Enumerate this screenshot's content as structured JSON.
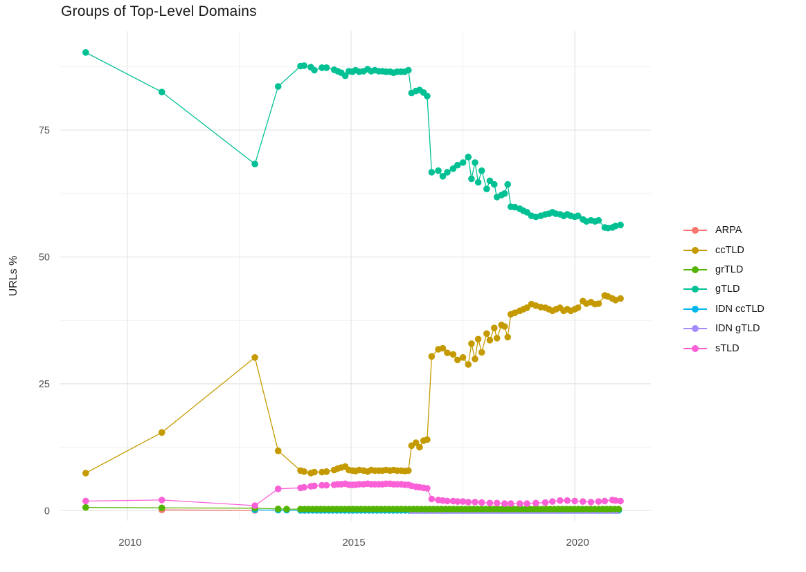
{
  "chart_data": {
    "type": "scatter",
    "title": "Groups of Top-Level Domains",
    "xlabel": "",
    "ylabel": "URLs %",
    "x_ticks": [
      {
        "value": 2010,
        "label": "2010"
      },
      {
        "value": 2015,
        "label": "2015"
      },
      {
        "value": 2020,
        "label": "2020"
      }
    ],
    "y_ticks": [
      {
        "value": 0,
        "label": "0"
      },
      {
        "value": 25,
        "label": "25"
      },
      {
        "value": 50,
        "label": "50"
      },
      {
        "value": 75,
        "label": "75"
      }
    ],
    "x_minor_gridlines": [
      2012.5,
      2017.5
    ],
    "y_minor_gridlines": [
      12.5,
      37.5,
      62.5,
      87.5
    ],
    "xlim": [
      2008.5,
      2021.7
    ],
    "ylim": [
      -2,
      94.5
    ],
    "grid": "on",
    "legend_position": "right",
    "legend_order": [
      "ARPA",
      "ccTLD",
      "grTLD",
      "gTLD",
      "IDN ccTLD",
      "IDN gTLD",
      "sTLD"
    ],
    "draw_order": [
      "ARPA",
      "IDN ccTLD",
      "IDN gTLD",
      "grTLD",
      "ccTLD",
      "gTLD",
      "sTLD"
    ],
    "series": [
      {
        "name": "ARPA",
        "color": "#F8766D",
        "points": [
          [
            2010.77,
            0.15
          ],
          [
            2012.85,
            0.05
          ]
        ]
      },
      {
        "name": "ccTLD",
        "color": "#C49A00",
        "points": [
          [
            2009.07,
            7.4
          ],
          [
            2010.77,
            15.4
          ],
          [
            2012.85,
            30.2
          ],
          [
            2013.37,
            11.8
          ],
          [
            2013.87,
            7.9
          ],
          [
            2013.95,
            7.7
          ],
          [
            2014.1,
            7.4
          ],
          [
            2014.18,
            7.6
          ],
          [
            2014.35,
            7.6
          ],
          [
            2014.45,
            7.7
          ],
          [
            2014.62,
            8.0
          ],
          [
            2014.7,
            8.3
          ],
          [
            2014.78,
            8.5
          ],
          [
            2014.87,
            8.7
          ],
          [
            2014.95,
            8.0
          ],
          [
            2015.03,
            7.9
          ],
          [
            2015.1,
            7.8
          ],
          [
            2015.18,
            8.0
          ],
          [
            2015.28,
            7.9
          ],
          [
            2015.37,
            7.7
          ],
          [
            2015.45,
            8.0
          ],
          [
            2015.53,
            7.9
          ],
          [
            2015.62,
            7.9
          ],
          [
            2015.7,
            7.9
          ],
          [
            2015.78,
            8.0
          ],
          [
            2015.87,
            7.9
          ],
          [
            2015.95,
            8.0
          ],
          [
            2016.03,
            7.9
          ],
          [
            2016.12,
            7.9
          ],
          [
            2016.2,
            7.8
          ],
          [
            2016.28,
            7.9
          ],
          [
            2016.35,
            12.8
          ],
          [
            2016.45,
            13.4
          ],
          [
            2016.53,
            12.5
          ],
          [
            2016.62,
            13.8
          ],
          [
            2016.7,
            14.0
          ],
          [
            2016.8,
            30.4
          ],
          [
            2016.95,
            31.8
          ],
          [
            2017.05,
            32.0
          ],
          [
            2017.15,
            31.1
          ],
          [
            2017.28,
            30.8
          ],
          [
            2017.38,
            29.7
          ],
          [
            2017.5,
            30.2
          ],
          [
            2017.62,
            28.8
          ],
          [
            2017.69,
            32.9
          ],
          [
            2017.77,
            29.9
          ],
          [
            2017.84,
            33.8
          ],
          [
            2017.92,
            31.2
          ],
          [
            2018.03,
            34.9
          ],
          [
            2018.1,
            33.6
          ],
          [
            2018.2,
            36.0
          ],
          [
            2018.26,
            34.0
          ],
          [
            2018.36,
            36.6
          ],
          [
            2018.43,
            36.3
          ],
          [
            2018.5,
            34.2
          ],
          [
            2018.57,
            38.7
          ],
          [
            2018.66,
            39.0
          ],
          [
            2018.77,
            39.4
          ],
          [
            2018.85,
            39.7
          ],
          [
            2018.93,
            40.0
          ],
          [
            2019.03,
            40.7
          ],
          [
            2019.13,
            40.4
          ],
          [
            2019.24,
            40.1
          ],
          [
            2019.34,
            40.0
          ],
          [
            2019.42,
            39.7
          ],
          [
            2019.5,
            39.4
          ],
          [
            2019.58,
            39.7
          ],
          [
            2019.67,
            40.0
          ],
          [
            2019.75,
            39.4
          ],
          [
            2019.83,
            39.7
          ],
          [
            2019.91,
            39.4
          ],
          [
            2020.0,
            39.7
          ],
          [
            2020.07,
            40.0
          ],
          [
            2020.18,
            41.3
          ],
          [
            2020.26,
            40.8
          ],
          [
            2020.36,
            41.1
          ],
          [
            2020.45,
            40.7
          ],
          [
            2020.53,
            40.8
          ],
          [
            2020.67,
            42.4
          ],
          [
            2020.74,
            42.2
          ],
          [
            2020.84,
            41.8
          ],
          [
            2020.91,
            41.5
          ],
          [
            2021.02,
            41.8
          ]
        ]
      },
      {
        "name": "grTLD",
        "color": "#53B400",
        "points": [
          [
            2009.07,
            0.65
          ],
          [
            2010.77,
            0.55
          ],
          [
            2012.85,
            0.5
          ],
          [
            2013.37,
            0.35
          ],
          [
            2013.56,
            0.3
          ]
        ],
        "segments": [
          {
            "from": 2013.87,
            "to": 2021.02,
            "step": 0.09,
            "value": 0.3
          }
        ]
      },
      {
        "name": "gTLD",
        "color": "#00C094",
        "points": [
          [
            2009.07,
            90.3
          ],
          [
            2010.77,
            82.5
          ],
          [
            2012.85,
            68.3
          ],
          [
            2013.37,
            83.6
          ],
          [
            2013.87,
            87.6
          ],
          [
            2013.95,
            87.7
          ],
          [
            2014.1,
            87.4
          ],
          [
            2014.18,
            86.8
          ],
          [
            2014.35,
            87.3
          ],
          [
            2014.45,
            87.3
          ],
          [
            2014.62,
            86.9
          ],
          [
            2014.7,
            86.6
          ],
          [
            2014.78,
            86.3
          ],
          [
            2014.87,
            85.7
          ],
          [
            2014.95,
            86.6
          ],
          [
            2015.03,
            86.5
          ],
          [
            2015.1,
            86.8
          ],
          [
            2015.18,
            86.5
          ],
          [
            2015.28,
            86.6
          ],
          [
            2015.37,
            87.0
          ],
          [
            2015.45,
            86.6
          ],
          [
            2015.53,
            86.8
          ],
          [
            2015.62,
            86.6
          ],
          [
            2015.7,
            86.6
          ],
          [
            2015.78,
            86.5
          ],
          [
            2015.87,
            86.5
          ],
          [
            2015.95,
            86.3
          ],
          [
            2016.03,
            86.5
          ],
          [
            2016.12,
            86.5
          ],
          [
            2016.2,
            86.5
          ],
          [
            2016.28,
            86.8
          ],
          [
            2016.35,
            82.3
          ],
          [
            2016.45,
            82.7
          ],
          [
            2016.53,
            82.9
          ],
          [
            2016.62,
            82.4
          ],
          [
            2016.7,
            81.7
          ],
          [
            2016.8,
            66.7
          ],
          [
            2016.95,
            67.0
          ],
          [
            2017.05,
            65.9
          ],
          [
            2017.15,
            66.7
          ],
          [
            2017.28,
            67.4
          ],
          [
            2017.38,
            68.1
          ],
          [
            2017.5,
            68.6
          ],
          [
            2017.62,
            69.7
          ],
          [
            2017.69,
            65.4
          ],
          [
            2017.77,
            68.6
          ],
          [
            2017.84,
            64.7
          ],
          [
            2017.92,
            67.0
          ],
          [
            2018.03,
            63.4
          ],
          [
            2018.1,
            65.0
          ],
          [
            2018.2,
            64.3
          ],
          [
            2018.26,
            61.8
          ],
          [
            2018.36,
            62.2
          ],
          [
            2018.43,
            62.5
          ],
          [
            2018.5,
            64.3
          ],
          [
            2018.57,
            59.9
          ],
          [
            2018.66,
            59.8
          ],
          [
            2018.77,
            59.5
          ],
          [
            2018.85,
            59.1
          ],
          [
            2018.93,
            58.8
          ],
          [
            2019.03,
            58.1
          ],
          [
            2019.13,
            57.9
          ],
          [
            2019.24,
            58.1
          ],
          [
            2019.34,
            58.4
          ],
          [
            2019.42,
            58.5
          ],
          [
            2019.5,
            58.8
          ],
          [
            2019.58,
            58.5
          ],
          [
            2019.67,
            58.4
          ],
          [
            2019.75,
            58.1
          ],
          [
            2019.83,
            58.4
          ],
          [
            2019.91,
            58.1
          ],
          [
            2020.0,
            57.9
          ],
          [
            2020.07,
            58.1
          ],
          [
            2020.18,
            57.4
          ],
          [
            2020.26,
            57.0
          ],
          [
            2020.36,
            57.2
          ],
          [
            2020.45,
            57.0
          ],
          [
            2020.53,
            57.2
          ],
          [
            2020.67,
            55.8
          ],
          [
            2020.74,
            55.7
          ],
          [
            2020.84,
            55.8
          ],
          [
            2020.91,
            56.1
          ],
          [
            2021.02,
            56.3
          ]
        ]
      },
      {
        "name": "IDN ccTLD",
        "color": "#00B6EB",
        "points": [
          [
            2012.85,
            0.15
          ],
          [
            2013.37,
            0.1
          ],
          [
            2013.56,
            0.1
          ]
        ],
        "segments": [
          {
            "from": 2013.87,
            "to": 2021.02,
            "step": 0.09,
            "value": 0.06
          }
        ]
      },
      {
        "name": "IDN gTLD",
        "color": "#A58AFF",
        "points": [],
        "segments": [
          {
            "from": 2016.35,
            "to": 2021.02,
            "step": 0.09,
            "value": 0.02
          }
        ]
      },
      {
        "name": "sTLD",
        "color": "#FB61D7",
        "points": [
          [
            2009.07,
            1.9
          ],
          [
            2010.77,
            2.1
          ],
          [
            2012.85,
            1.0
          ],
          [
            2013.37,
            4.3
          ],
          [
            2013.87,
            4.5
          ],
          [
            2013.95,
            4.6
          ],
          [
            2014.1,
            4.8
          ],
          [
            2014.18,
            4.9
          ],
          [
            2014.35,
            5.0
          ],
          [
            2014.45,
            5.0
          ],
          [
            2014.62,
            5.1
          ],
          [
            2014.7,
            5.2
          ],
          [
            2014.78,
            5.2
          ],
          [
            2014.87,
            5.3
          ],
          [
            2014.95,
            5.1
          ],
          [
            2015.03,
            5.1
          ],
          [
            2015.1,
            5.1
          ],
          [
            2015.18,
            5.2
          ],
          [
            2015.28,
            5.2
          ],
          [
            2015.37,
            5.3
          ],
          [
            2015.45,
            5.2
          ],
          [
            2015.53,
            5.2
          ],
          [
            2015.62,
            5.2
          ],
          [
            2015.7,
            5.2
          ],
          [
            2015.78,
            5.3
          ],
          [
            2015.87,
            5.3
          ],
          [
            2015.95,
            5.2
          ],
          [
            2016.03,
            5.2
          ],
          [
            2016.12,
            5.2
          ],
          [
            2016.2,
            5.1
          ],
          [
            2016.28,
            5.1
          ],
          [
            2016.35,
            4.9
          ],
          [
            2016.45,
            4.7
          ],
          [
            2016.53,
            4.6
          ],
          [
            2016.62,
            4.5
          ],
          [
            2016.7,
            4.4
          ],
          [
            2016.8,
            2.3
          ],
          [
            2016.95,
            2.1
          ],
          [
            2017.05,
            2.0
          ],
          [
            2017.15,
            1.9
          ],
          [
            2017.28,
            1.9
          ],
          [
            2017.38,
            1.8
          ],
          [
            2017.5,
            1.8
          ],
          [
            2017.62,
            1.7
          ],
          [
            2017.77,
            1.7
          ],
          [
            2017.92,
            1.6
          ],
          [
            2018.1,
            1.5
          ],
          [
            2018.26,
            1.5
          ],
          [
            2018.43,
            1.4
          ],
          [
            2018.57,
            1.4
          ],
          [
            2018.77,
            1.4
          ],
          [
            2018.93,
            1.4
          ],
          [
            2019.13,
            1.5
          ],
          [
            2019.34,
            1.6
          ],
          [
            2019.5,
            1.8
          ],
          [
            2019.67,
            2.0
          ],
          [
            2019.83,
            2.0
          ],
          [
            2020.0,
            1.9
          ],
          [
            2020.18,
            1.8
          ],
          [
            2020.36,
            1.7
          ],
          [
            2020.53,
            1.8
          ],
          [
            2020.67,
            1.9
          ],
          [
            2020.84,
            2.1
          ],
          [
            2020.91,
            2.0
          ],
          [
            2021.02,
            1.9
          ]
        ]
      }
    ],
    "style": {
      "background": "#ffffff",
      "major_grid_color": "#E4E4E4",
      "minor_grid_color": "#F0F0F0",
      "tick_label_color": "#4E4E4E",
      "title_color": "#1a1a1a",
      "marker_radius": 4.8,
      "line_width": 1.3
    }
  }
}
